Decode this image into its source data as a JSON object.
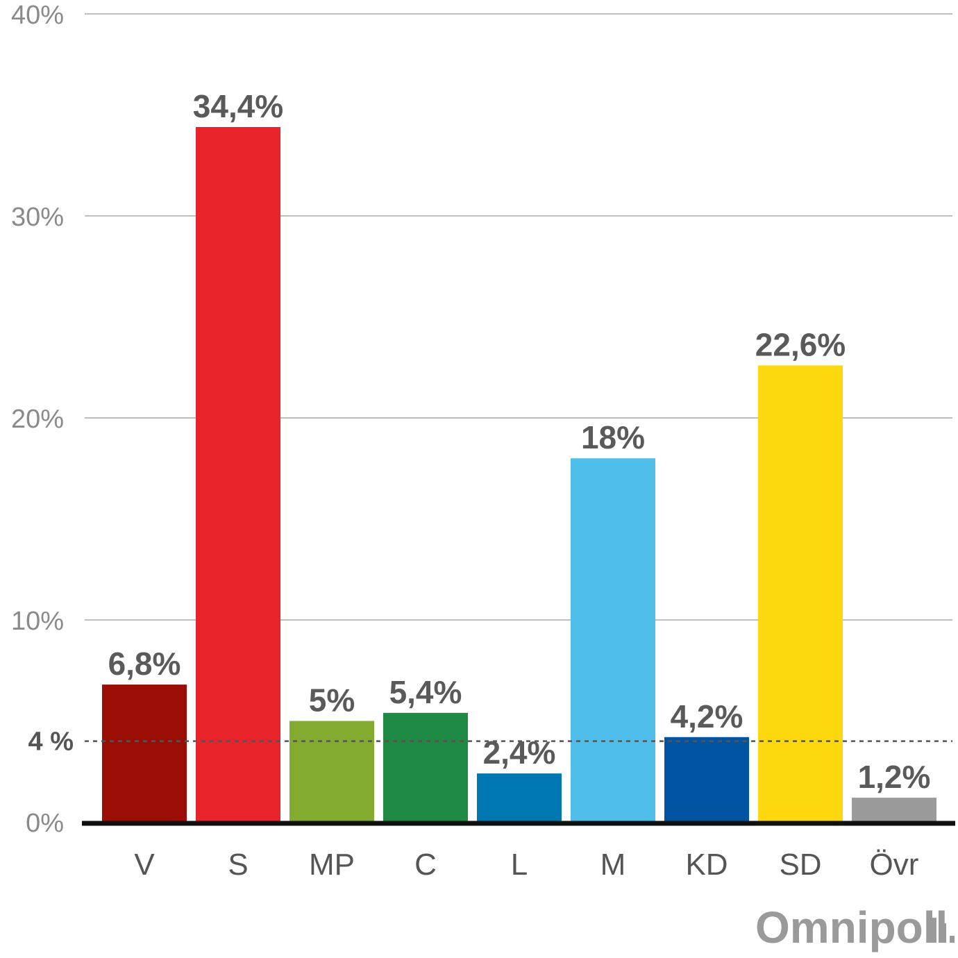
{
  "chart_data": {
    "type": "bar",
    "categories": [
      "V",
      "S",
      "MP",
      "C",
      "L",
      "M",
      "KD",
      "SD",
      "Övr"
    ],
    "values": [
      6.8,
      34.4,
      5.0,
      5.4,
      2.4,
      18.0,
      4.2,
      22.6,
      1.2
    ],
    "data_labels": [
      "6,8%",
      "34,4%",
      "5%",
      "5,4%",
      "2,4%",
      "18%",
      "4,2%",
      "22,6%",
      "1,2%"
    ],
    "colors": [
      "#9b0e06",
      "#e8232a",
      "#83ab2f",
      "#1e8a44",
      "#0077b0",
      "#4fbeeb",
      "#0054a2",
      "#fdd80e",
      "#9a9a9a"
    ],
    "ylim": [
      0,
      40
    ],
    "yticks": [
      0,
      10,
      20,
      30,
      40
    ],
    "ytick_labels": [
      "0%",
      "10%",
      "20%",
      "30%",
      "40%"
    ],
    "grid": true,
    "threshold": {
      "value": 4,
      "label": "4 %"
    }
  },
  "logo": {
    "text": "Omnipoll"
  }
}
